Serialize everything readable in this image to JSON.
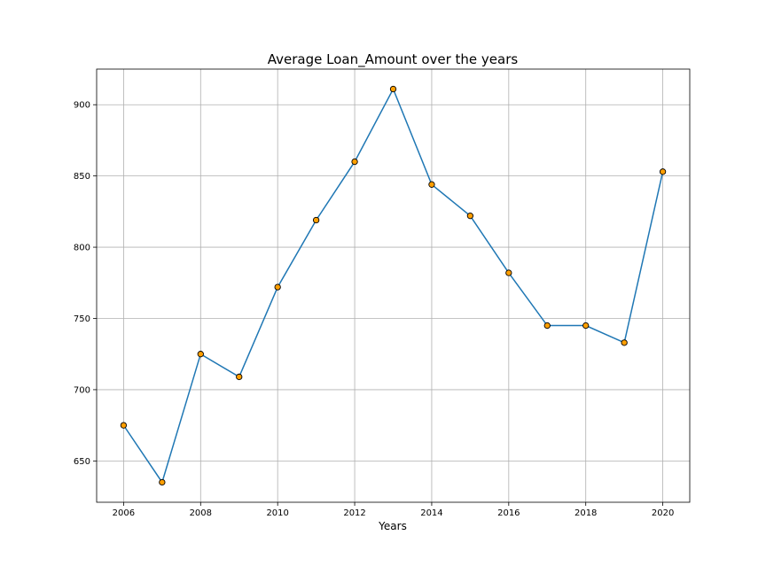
{
  "chart_data": {
    "type": "line",
    "title": "Average Loan_Amount over the years",
    "xlabel": "Years",
    "ylabel": "",
    "x": [
      2006,
      2007,
      2008,
      2009,
      2010,
      2011,
      2012,
      2013,
      2014,
      2015,
      2016,
      2017,
      2018,
      2019,
      2020
    ],
    "series": [
      {
        "values": [
          675,
          635,
          725,
          709,
          772,
          819,
          860,
          911,
          844,
          822,
          782,
          745,
          745,
          733,
          853
        ]
      }
    ],
    "xlim": [
      2005.3,
      2020.7
    ],
    "ylim": [
      621,
      925
    ],
    "xticks": [
      2006,
      2008,
      2010,
      2012,
      2014,
      2016,
      2018,
      2020
    ],
    "yticks": [
      650,
      700,
      750,
      800,
      850,
      900
    ],
    "grid": true,
    "colors": {
      "line": "#1f77b4",
      "marker_fill": "#ff9f00",
      "marker_edge": "#000000"
    }
  }
}
